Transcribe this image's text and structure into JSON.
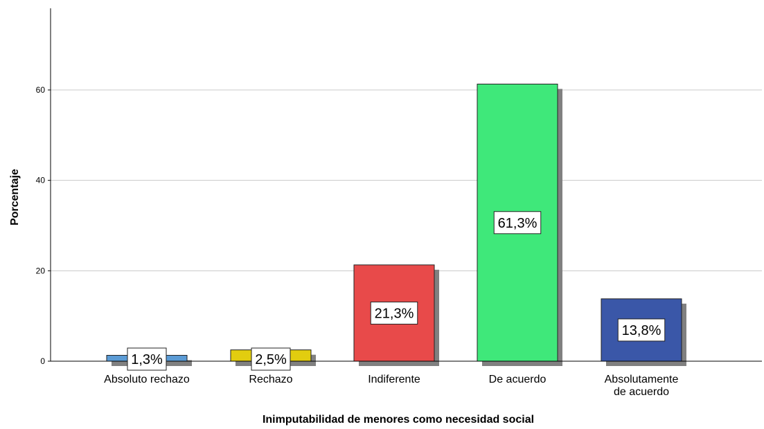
{
  "chart_data": {
    "type": "bar",
    "title": "",
    "xlabel": "Inimputabilidad de menores como necesidad social",
    "ylabel": "Porcentaje",
    "ylim": [
      0,
      75
    ],
    "yticks": [
      0,
      20,
      40,
      60
    ],
    "grid": true,
    "categories": [
      [
        "Absoluto rechazo"
      ],
      [
        "Rechazo"
      ],
      [
        "Indiferente"
      ],
      [
        "De acuerdo"
      ],
      [
        "Absolutamente",
        "de acuerdo"
      ]
    ],
    "values": [
      1.3,
      2.5,
      21.3,
      61.3,
      13.8
    ],
    "value_labels": [
      "1,3%",
      "2,5%",
      "21,3%",
      "61,3%",
      "13,8%"
    ],
    "colors": [
      "#5b9bd5",
      "#e2cd0f",
      "#e84a4a",
      "#3fe87a",
      "#3a57a8"
    ],
    "shadow_color": "#808080",
    "grid_color": "#c8c8c8"
  }
}
